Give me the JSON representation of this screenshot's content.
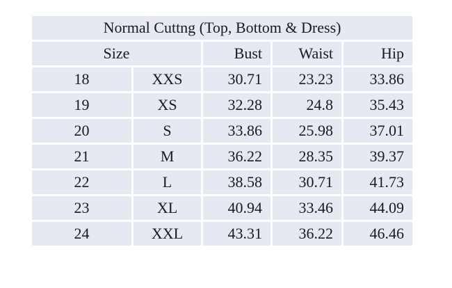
{
  "table": {
    "title": "Normal Cuttng (Top, Bottom & Dress)",
    "headers": {
      "size": "Size",
      "bust": "Bust",
      "waist": "Waist",
      "hip": "Hip"
    },
    "rows": [
      {
        "num": "18",
        "label": "XXS",
        "bust": "30.71",
        "waist": "23.23",
        "hip": "33.86"
      },
      {
        "num": "19",
        "label": "XS",
        "bust": "32.28",
        "waist": "24.8",
        "hip": "35.43"
      },
      {
        "num": "20",
        "label": "S",
        "bust": "33.86",
        "waist": "25.98",
        "hip": "37.01"
      },
      {
        "num": "21",
        "label": "M",
        "bust": "36.22",
        "waist": "28.35",
        "hip": "39.37"
      },
      {
        "num": "22",
        "label": "L",
        "bust": "38.58",
        "waist": "30.71",
        "hip": "41.73"
      },
      {
        "num": "23",
        "label": "XL",
        "bust": "40.94",
        "waist": "33.46",
        "hip": "44.09"
      },
      {
        "num": "24",
        "label": "XXL",
        "bust": "43.31",
        "waist": "36.22",
        "hip": "46.46"
      }
    ]
  },
  "colors": {
    "cell_background": "#e6e9f2",
    "cell_border": "#ffffff",
    "text": "#1a1a1a"
  }
}
